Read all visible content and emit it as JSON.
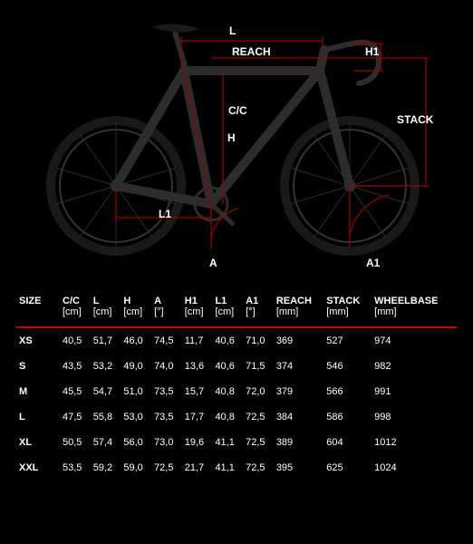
{
  "diagram": {
    "labels": {
      "L": "L",
      "REACH": "REACH",
      "H1": "H1",
      "STACK": "STACK",
      "CC": "C/C",
      "H": "H",
      "L1": "L1",
      "A": "A",
      "A1": "A1"
    },
    "colors": {
      "measure_line": "#9a0000",
      "bike_body": "#1c1c1c",
      "bike_outline": "#2c2c2c",
      "spoke": "#2a2a2a",
      "tire": "#191919",
      "label_text": "#ffffff",
      "accent": "#c00000"
    }
  },
  "table": {
    "columns": [
      {
        "label": "SIZE",
        "unit": ""
      },
      {
        "label": "C/C",
        "unit": "[cm]"
      },
      {
        "label": "L",
        "unit": "[cm]"
      },
      {
        "label": "H",
        "unit": "[cm]"
      },
      {
        "label": "A",
        "unit": "[°]"
      },
      {
        "label": "H1",
        "unit": "[cm]"
      },
      {
        "label": "L1",
        "unit": "[cm]"
      },
      {
        "label": "A1",
        "unit": "[°]"
      },
      {
        "label": "REACH",
        "unit": "[mm]"
      },
      {
        "label": "STACK",
        "unit": "[mm]"
      },
      {
        "label": "WHEELBASE",
        "unit": "[mm]"
      }
    ],
    "rows": [
      [
        "XS",
        "40,5",
        "51,7",
        "46,0",
        "74,5",
        "11,7",
        "40,6",
        "71,0",
        "369",
        "527",
        "974"
      ],
      [
        "S",
        "43,5",
        "53,2",
        "49,0",
        "74,0",
        "13,6",
        "40,6",
        "71,5",
        "374",
        "546",
        "982"
      ],
      [
        "M",
        "45,5",
        "54,7",
        "51,0",
        "73,5",
        "15,7",
        "40,8",
        "72,0",
        "379",
        "566",
        "991"
      ],
      [
        "L",
        "47,5",
        "55,8",
        "53,0",
        "73,5",
        "17,7",
        "40,8",
        "72,5",
        "384",
        "586",
        "998"
      ],
      [
        "XL",
        "50,5",
        "57,4",
        "56,0",
        "73,0",
        "19,6",
        "41,1",
        "72,5",
        "389",
        "604",
        "1012"
      ],
      [
        "XXL",
        "53,5",
        "59,2",
        "59,0",
        "72,5",
        "21,7",
        "41,1",
        "72,5",
        "395",
        "625",
        "1024"
      ]
    ]
  }
}
